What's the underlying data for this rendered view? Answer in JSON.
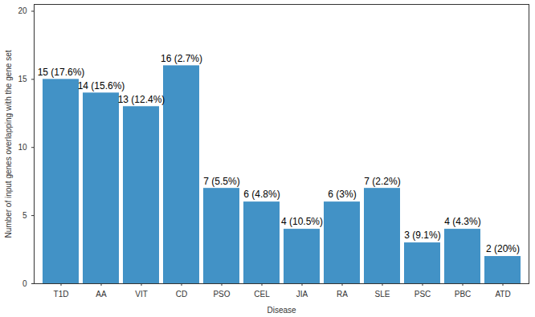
{
  "chart_data": {
    "type": "bar",
    "x_label": "Disease",
    "y_label": "Number of input genes overlapping with the gene set",
    "categories": [
      "T1D",
      "AA",
      "VIT",
      "CD",
      "PSO",
      "CEL",
      "JIA",
      "RA",
      "SLE",
      "PSC",
      "PBC",
      "ATD"
    ],
    "values": [
      15,
      14,
      13,
      16,
      7,
      6,
      4,
      6,
      7,
      3,
      4,
      2
    ],
    "value_labels": [
      "15 (17.6%)",
      "14 (15.6%)",
      "13 (12.4%)",
      "16 (2.7%)",
      "7 (5.5%)",
      "6 (4.8%)",
      "4 (10.5%)",
      "6 (3%)",
      "7 (2.2%)",
      "3 (9.1%)",
      "4 (4.3%)",
      "2 (20%)"
    ],
    "data_labels": true,
    "color": "#4292c6",
    "ylim": [
      0,
      20.5
    ],
    "yticks": [
      0,
      5,
      10,
      15,
      20
    ],
    "grid": false
  }
}
